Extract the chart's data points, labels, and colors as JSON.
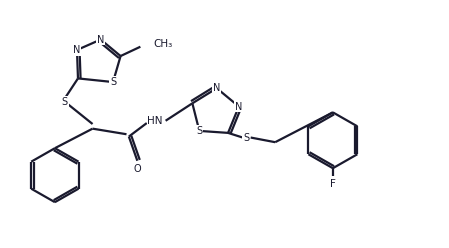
{
  "bg_color": "#ffffff",
  "line_color": "#1a1a2e",
  "line_width": 1.6,
  "figsize": [
    4.49,
    2.48
  ],
  "dpi": 100,
  "xlim": [
    0,
    9.5
  ],
  "ylim": [
    0,
    5.3
  ]
}
